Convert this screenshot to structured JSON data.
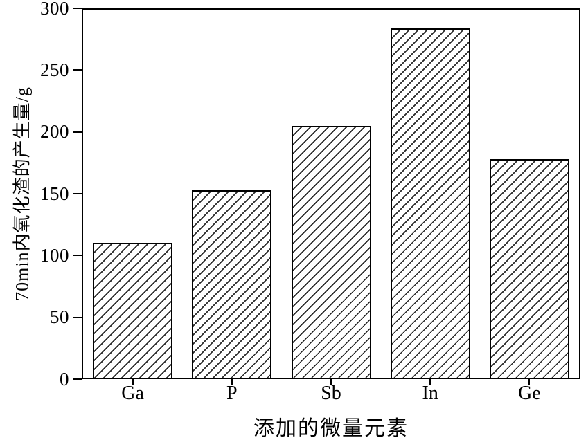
{
  "figure": {
    "background": "#ffffff",
    "line_color": "#000000"
  },
  "chart_data": {
    "type": "bar",
    "categories": [
      "Ga",
      "P",
      "Sb",
      "In",
      "Ge"
    ],
    "values": [
      110,
      153,
      205,
      285,
      178
    ],
    "title": "",
    "xlabel": "添加的微量元素",
    "ylabel": "70min内氧化渣的产生量/g",
    "ylim": [
      0,
      300
    ],
    "yticks": [
      0,
      50,
      100,
      150,
      200,
      250,
      300
    ],
    "bar_style": "diagonal-hatch",
    "bar_fill": "#ffffff",
    "hatch_color": "#000000",
    "grid": false,
    "legend": "none"
  }
}
